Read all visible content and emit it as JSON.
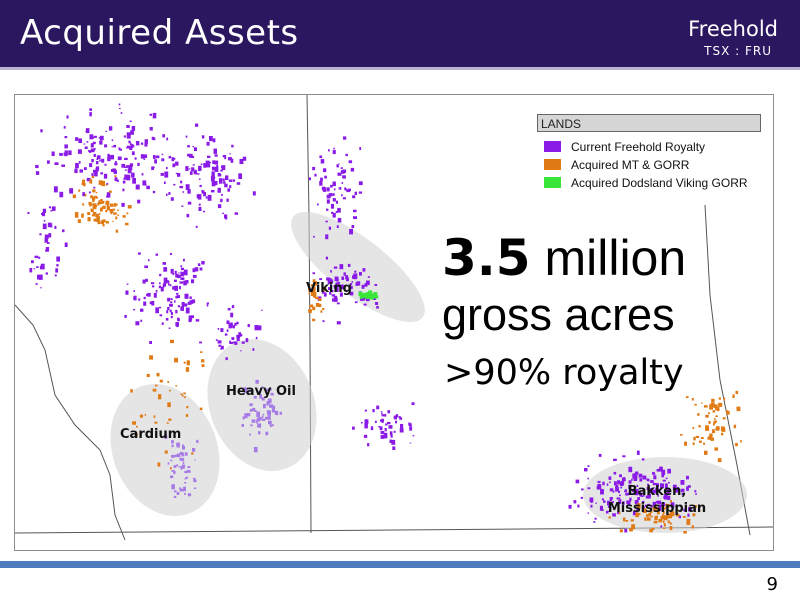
{
  "header": {
    "title": "Acquired Assets",
    "brand": "Freehold",
    "ticker": "TSX : FRU"
  },
  "legend": {
    "heading": "LANDS",
    "items": [
      {
        "label": "Current Freehold Royalty",
        "color": "#8a1be6"
      },
      {
        "label": "Acquired MT & GORR",
        "color": "#e07a14"
      },
      {
        "label": "Acquired Dodsland Viking GORR",
        "color": "#39e639"
      }
    ]
  },
  "stats": {
    "big_number": "3.5",
    "big_unit": " million",
    "acres": "gross acres",
    "royalty": ">90% royalty"
  },
  "plays": {
    "viking": "Viking",
    "heavy_oil": "Heavy Oil",
    "cardium": "Cardium",
    "bakken_line1": "Bakken,",
    "bakken_line2": "Mississippian"
  },
  "colors": {
    "header_bg": "#2b1660",
    "footer_accent": "#4f7bbf",
    "freehold_purple": "#8a1be6",
    "acquired_orange": "#e07a14",
    "viking_green": "#39e639"
  },
  "footer": {
    "page_number": "9"
  }
}
